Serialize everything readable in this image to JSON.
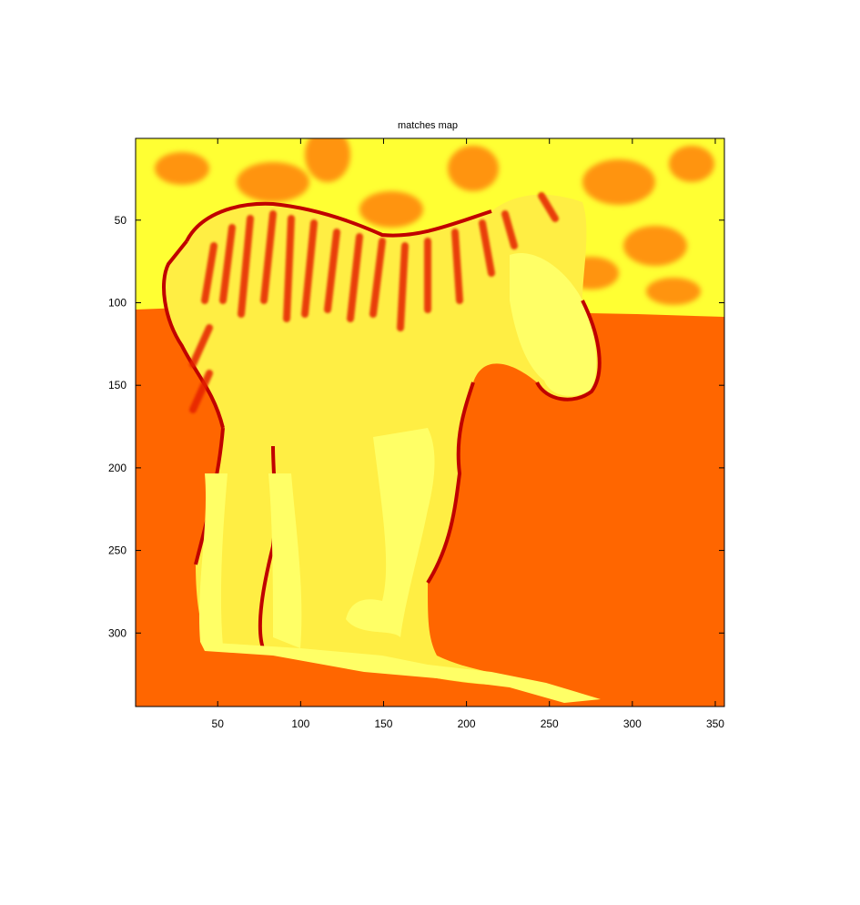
{
  "chart_data": {
    "type": "heatmap",
    "title": "matches map",
    "xlabel": "",
    "ylabel": "",
    "colormap": "hot",
    "xlim": [
      0.5,
      355.5
    ],
    "ylim": [
      0.5,
      344.5
    ],
    "y_reversed": true,
    "xticks": [
      50,
      100,
      150,
      200,
      250,
      300,
      350
    ],
    "yticks": [
      50,
      100,
      150,
      200,
      250,
      300
    ],
    "grid": false,
    "colors": {
      "ground": "#ff6600",
      "background_field": "#ffff33",
      "edge_dark": "#c00000",
      "stripe_red": "#e52200",
      "body_yellow": "#ffee44",
      "bright": "#ffff66"
    }
  }
}
